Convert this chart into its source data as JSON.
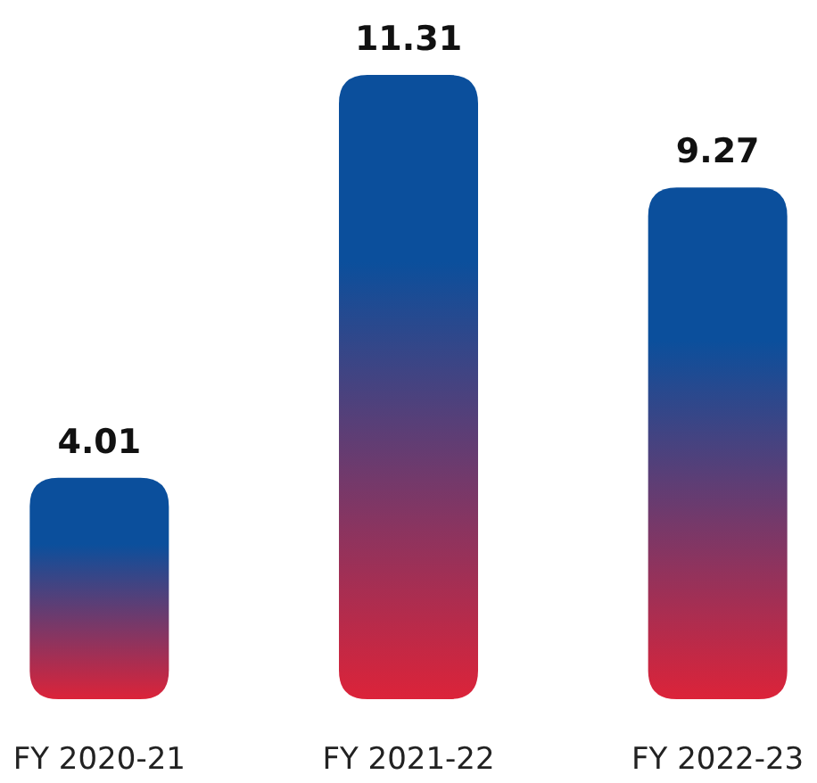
{
  "chart_data": {
    "type": "bar",
    "categories": [
      "FY 2020-21",
      "FY 2021-22",
      "FY 2022-23"
    ],
    "values": [
      4.01,
      11.31,
      9.27
    ],
    "color": "#0b4f9c",
    "data_labels": true
  }
}
